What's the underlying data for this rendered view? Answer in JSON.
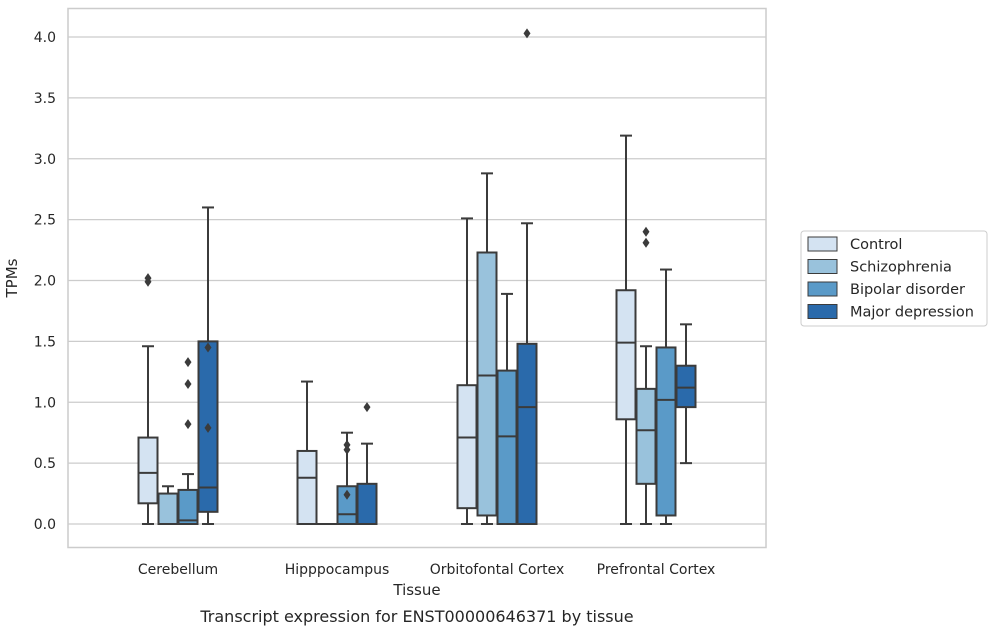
{
  "chart_data": {
    "type": "boxplot",
    "xlabel": "Tissue",
    "ylabel": "TPMs",
    "caption": "Transcript expression for ENST00000646371 by tissue",
    "ylim": [
      -0.19,
      4.24
    ],
    "yticks": [
      "0.0",
      "0.5",
      "1.0",
      "1.5",
      "2.0",
      "2.5",
      "3.0",
      "3.5",
      "4.0"
    ],
    "categories": [
      "Cerebellum",
      "Hipppocampus",
      "Orbitofontal Cortex",
      "Prefrontal Cortex"
    ],
    "grid": "horizontal",
    "legend_position": "right",
    "series": [
      {
        "name": "Control",
        "color": "#d4e3f2",
        "boxes": [
          {
            "whislo": 0.0,
            "q1": 0.17,
            "med": 0.42,
            "q3": 0.71,
            "whishi": 1.46,
            "fliers": [
              1.99,
              2.02
            ]
          },
          {
            "whislo": 0.0,
            "q1": 0.0,
            "med": 0.38,
            "q3": 0.6,
            "whishi": 1.17,
            "fliers": []
          },
          {
            "whislo": 0.0,
            "q1": 0.13,
            "med": 0.71,
            "q3": 1.14,
            "whishi": 2.51,
            "fliers": []
          },
          {
            "whislo": 0.0,
            "q1": 0.86,
            "med": 1.49,
            "q3": 1.92,
            "whishi": 3.19,
            "fliers": []
          }
        ]
      },
      {
        "name": "Schizophrenia",
        "color": "#99c2dc",
        "boxes": [
          {
            "whislo": 0.0,
            "q1": 0.0,
            "med": 0.0,
            "q3": 0.25,
            "whishi": 0.31,
            "fliers": []
          },
          {
            "whislo": 0.0,
            "q1": 0.0,
            "med": 0.0,
            "q3": 0.0,
            "whishi": 0.0,
            "fliers": []
          },
          {
            "whislo": 0.0,
            "q1": 0.07,
            "med": 1.22,
            "q3": 2.23,
            "whishi": 2.88,
            "fliers": []
          },
          {
            "whislo": 0.0,
            "q1": 0.33,
            "med": 0.77,
            "q3": 1.11,
            "whishi": 1.46,
            "fliers": [
              2.31,
              2.4
            ]
          }
        ]
      },
      {
        "name": "Bipolar disorder",
        "color": "#5a9ac8",
        "boxes": [
          {
            "whislo": 0.0,
            "q1": 0.0,
            "med": 0.03,
            "q3": 0.28,
            "whishi": 0.41,
            "fliers": [
              0.82,
              1.15,
              1.33
            ]
          },
          {
            "whislo": 0.0,
            "q1": 0.0,
            "med": 0.08,
            "q3": 0.31,
            "whishi": 0.75,
            "fliers": [
              0.24,
              0.61,
              0.65
            ]
          },
          {
            "whislo": 0.0,
            "q1": 0.0,
            "med": 0.72,
            "q3": 1.26,
            "whishi": 1.89,
            "fliers": []
          },
          {
            "whislo": 0.0,
            "q1": 0.07,
            "med": 1.02,
            "q3": 1.45,
            "whishi": 2.09,
            "fliers": []
          }
        ]
      },
      {
        "name": "Major depression",
        "color": "#2a6aab",
        "boxes": [
          {
            "whislo": 0.0,
            "q1": 0.1,
            "med": 0.3,
            "q3": 1.5,
            "whishi": 2.6,
            "fliers": [
              0.79,
              1.45
            ]
          },
          {
            "whislo": 0.0,
            "q1": 0.0,
            "med": 0.0,
            "q3": 0.33,
            "whishi": 0.66,
            "fliers": [
              0.96
            ]
          },
          {
            "whislo": 0.0,
            "q1": 0.0,
            "med": 0.96,
            "q3": 1.48,
            "whishi": 2.47,
            "fliers": [
              4.03
            ]
          },
          {
            "whislo": 0.5,
            "q1": 0.96,
            "med": 1.12,
            "q3": 1.3,
            "whishi": 1.64,
            "fliers": []
          }
        ]
      }
    ]
  }
}
